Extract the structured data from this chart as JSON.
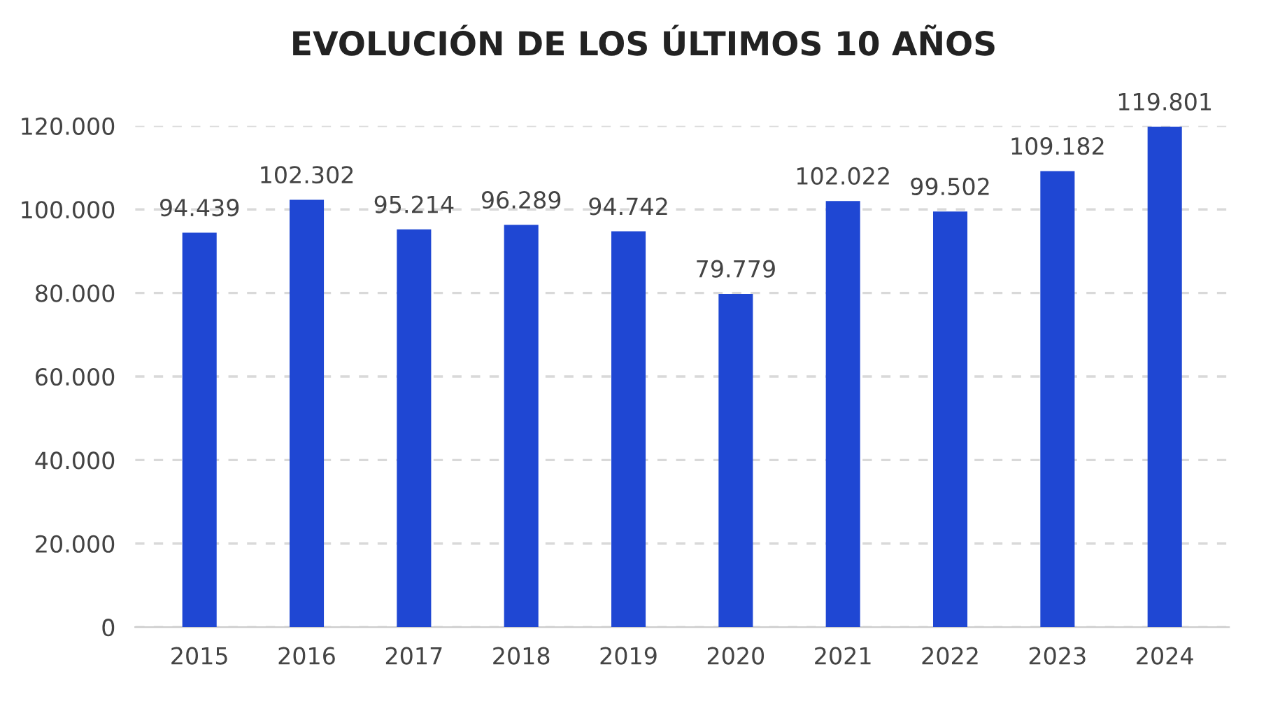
{
  "chart_data": {
    "type": "bar",
    "title": "EVOLUCIÓN DE LOS ÚLTIMOS 10 AÑOS",
    "categories": [
      "2015",
      "2016",
      "2017",
      "2018",
      "2019",
      "2020",
      "2021",
      "2022",
      "2023",
      "2024"
    ],
    "values": [
      94439,
      102302,
      95214,
      96289,
      94742,
      79779,
      102022,
      99502,
      109182,
      119801
    ],
    "value_labels": [
      "94.439",
      "102.302",
      "95.214",
      "96.289",
      "94.742",
      "79.779",
      "102.022",
      "99.502",
      "109.182",
      "119.801"
    ],
    "color": "#1f47d3",
    "ylim": [
      0,
      120000
    ],
    "yticks": [
      {
        "value": 0,
        "label": "0"
      },
      {
        "value": 20000,
        "label": "20.000"
      },
      {
        "value": 40000,
        "label": "40.000"
      },
      {
        "value": 60000,
        "label": "60.000"
      },
      {
        "value": 80000,
        "label": "80.000"
      },
      {
        "value": 100000,
        "label": "100.000"
      },
      {
        "value": 120000,
        "label": "120.000"
      }
    ],
    "grid": "y",
    "legend": false
  }
}
